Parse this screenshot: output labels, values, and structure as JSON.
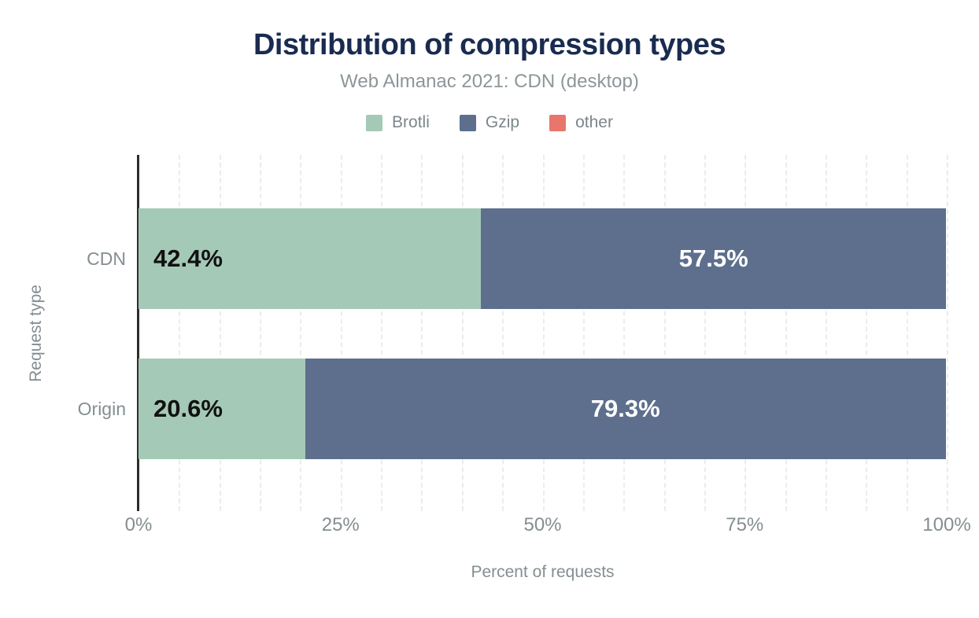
{
  "header": {
    "title": "Distribution of compression types",
    "subtitle": "Web Almanac 2021: CDN (desktop)"
  },
  "legend": {
    "items": [
      {
        "label": "Brotli",
        "color": "#a5c9b7"
      },
      {
        "label": "Gzip",
        "color": "#5d6f8d"
      },
      {
        "label": "other",
        "color": "#e8766d"
      }
    ]
  },
  "chart_data": {
    "type": "bar",
    "orientation": "horizontal",
    "stacked": true,
    "title": "Distribution of compression types",
    "subtitle": "Web Almanac 2021: CDN (desktop)",
    "categories": [
      "CDN",
      "Origin"
    ],
    "series": [
      {
        "name": "Brotli",
        "color": "#a5c9b7",
        "values": [
          42.4,
          20.6
        ],
        "data_labels": [
          "42.4%",
          "20.6%"
        ]
      },
      {
        "name": "Gzip",
        "color": "#5d6f8d",
        "values": [
          57.5,
          79.3
        ],
        "data_labels": [
          "57.5%",
          "79.3%"
        ]
      },
      {
        "name": "other",
        "color": "#e8766d",
        "values": [
          null,
          null
        ],
        "data_labels": [
          "",
          ""
        ]
      }
    ],
    "xlabel": "Percent of requests",
    "ylabel": "Request type",
    "xlim": [
      0,
      100
    ],
    "x_ticks": [
      {
        "value": 0,
        "label": "0%"
      },
      {
        "value": 25,
        "label": "25%"
      },
      {
        "value": 50,
        "label": "50%"
      },
      {
        "value": 75,
        "label": "75%"
      },
      {
        "value": 100,
        "label": "100%"
      }
    ],
    "minor_grid_step": 5,
    "grid": true,
    "legend_position": "top"
  },
  "colors": {
    "background": "#ffffff",
    "title": "#1a2b50",
    "subtitle": "#8d9699",
    "axis_text": "#848e91",
    "grid": "#ececec",
    "axis_line": "#2d2d2d",
    "bar_label_dark": "#111111",
    "bar_label_light": "#ffffff"
  }
}
